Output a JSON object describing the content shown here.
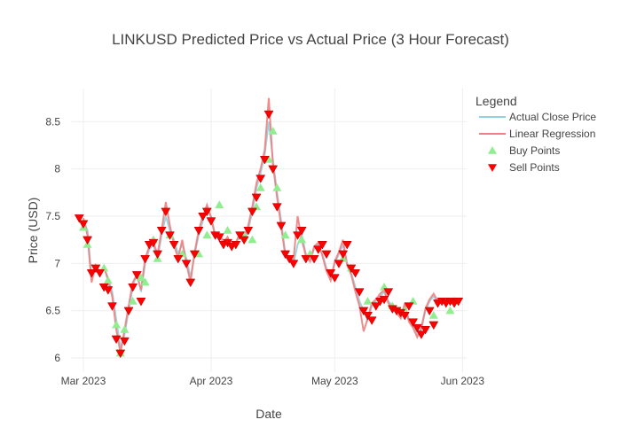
{
  "chart_data": {
    "type": "line",
    "title": "LINKUSD Predicted Price vs Actual Price (3 Hour Forecast)",
    "xlabel": "Date",
    "ylabel": "Price (USD)",
    "xlim": [
      "2023-02-26",
      "2023-06-02"
    ],
    "ylim": [
      5.85,
      8.85
    ],
    "y_ticks": [
      6,
      6.5,
      7,
      7.5,
      8,
      8.5
    ],
    "y_tick_labels": [
      "6",
      "6.5",
      "7",
      "7.5",
      "8",
      "8.5"
    ],
    "x_ticks": [
      "2023-03-01",
      "2023-04-01",
      "2023-05-01",
      "2023-06-01"
    ],
    "x_tick_labels": [
      "Mar 2023",
      "Apr 2023",
      "May 2023",
      "Jun 2023"
    ],
    "grid": true,
    "legend": {
      "title": "Legend",
      "placement": "right",
      "entries": [
        "Actual Close Price",
        "Linear Regression",
        "Buy Points",
        "Sell Points"
      ]
    },
    "colors": {
      "actual": "#8fd3e0",
      "regression": "#f08080",
      "buy": "#90ee90",
      "sell": "#ff0000"
    },
    "series": [
      {
        "name": "Actual Close Price",
        "type": "line",
        "x": [
          "2023-03-01",
          "2023-03-02",
          "2023-03-03",
          "2023-03-04",
          "2023-03-05",
          "2023-03-06",
          "2023-03-07",
          "2023-03-08",
          "2023-03-09",
          "2023-03-10",
          "2023-03-11",
          "2023-03-12",
          "2023-03-13",
          "2023-03-14",
          "2023-03-15",
          "2023-03-16",
          "2023-03-17",
          "2023-03-18",
          "2023-03-19",
          "2023-03-20",
          "2023-03-21",
          "2023-03-22",
          "2023-03-23",
          "2023-03-24",
          "2023-03-25",
          "2023-03-26",
          "2023-03-27",
          "2023-03-28",
          "2023-03-29",
          "2023-03-30",
          "2023-03-31",
          "2023-04-01",
          "2023-04-02",
          "2023-04-03",
          "2023-04-04",
          "2023-04-05",
          "2023-04-06",
          "2023-04-07",
          "2023-04-08",
          "2023-04-09",
          "2023-04-10",
          "2023-04-11",
          "2023-04-12",
          "2023-04-13",
          "2023-04-14",
          "2023-04-15",
          "2023-04-16",
          "2023-04-17",
          "2023-04-18",
          "2023-04-19",
          "2023-04-20",
          "2023-04-21",
          "2023-04-22",
          "2023-04-23",
          "2023-04-24",
          "2023-04-25",
          "2023-04-26",
          "2023-04-27",
          "2023-04-28",
          "2023-04-29",
          "2023-04-30",
          "2023-05-01",
          "2023-05-02",
          "2023-05-03",
          "2023-05-04",
          "2023-05-05",
          "2023-05-06",
          "2023-05-07",
          "2023-05-08",
          "2023-05-09",
          "2023-05-10",
          "2023-05-11",
          "2023-05-12",
          "2023-05-13",
          "2023-05-14",
          "2023-05-15",
          "2023-05-16",
          "2023-05-17",
          "2023-05-18",
          "2023-05-19",
          "2023-05-20",
          "2023-05-21",
          "2023-05-22",
          "2023-05-23",
          "2023-05-24",
          "2023-05-25",
          "2023-05-26",
          "2023-05-27",
          "2023-05-28",
          "2023-05-29",
          "2023-05-30",
          "2023-05-31"
        ],
        "y": [
          7.45,
          7.35,
          6.85,
          6.95,
          6.92,
          6.95,
          6.85,
          6.7,
          6.4,
          6.1,
          6.25,
          6.5,
          6.75,
          6.9,
          6.7,
          7.0,
          7.15,
          7.2,
          7.05,
          7.3,
          7.5,
          7.35,
          7.25,
          7.1,
          7.2,
          7.05,
          6.85,
          7.1,
          7.3,
          7.45,
          7.6,
          7.5,
          7.3,
          7.3,
          7.2,
          7.25,
          7.2,
          7.2,
          7.3,
          7.25,
          7.35,
          7.55,
          7.8,
          7.95,
          8.15,
          8.5,
          8.1,
          7.75,
          7.45,
          7.1,
          7.05,
          7.0,
          7.2,
          7.3,
          7.1,
          7.05,
          7.15,
          7.2,
          7.1,
          6.95,
          6.85,
          7.0,
          7.1,
          7.2,
          7.0,
          6.9,
          6.75,
          6.6,
          6.5,
          6.4,
          6.55,
          6.6,
          6.65,
          6.7,
          6.6,
          6.55,
          6.5,
          6.45,
          6.55,
          6.4,
          6.35,
          6.25,
          6.3,
          6.5,
          6.6,
          6.65,
          6.6,
          6.6,
          6.6,
          6.6,
          6.6,
          6.6
        ]
      },
      {
        "name": "Linear Regression",
        "type": "line",
        "x": [
          "2023-03-01",
          "2023-03-02",
          "2023-03-03",
          "2023-03-04",
          "2023-03-05",
          "2023-03-06",
          "2023-03-07",
          "2023-03-08",
          "2023-03-09",
          "2023-03-10",
          "2023-03-11",
          "2023-03-12",
          "2023-03-13",
          "2023-03-14",
          "2023-03-15",
          "2023-03-16",
          "2023-03-17",
          "2023-03-18",
          "2023-03-19",
          "2023-03-20",
          "2023-03-21",
          "2023-03-22",
          "2023-03-23",
          "2023-03-24",
          "2023-03-25",
          "2023-03-26",
          "2023-03-27",
          "2023-03-28",
          "2023-03-29",
          "2023-03-30",
          "2023-03-31",
          "2023-04-01",
          "2023-04-02",
          "2023-04-03",
          "2023-04-04",
          "2023-04-05",
          "2023-04-06",
          "2023-04-07",
          "2023-04-08",
          "2023-04-09",
          "2023-04-10",
          "2023-04-11",
          "2023-04-12",
          "2023-04-13",
          "2023-04-14",
          "2023-04-15",
          "2023-04-16",
          "2023-04-17",
          "2023-04-18",
          "2023-04-19",
          "2023-04-20",
          "2023-04-21",
          "2023-04-22",
          "2023-04-23",
          "2023-04-24",
          "2023-04-25",
          "2023-04-26",
          "2023-04-27",
          "2023-04-28",
          "2023-04-29",
          "2023-04-30",
          "2023-05-01",
          "2023-05-02",
          "2023-05-03",
          "2023-05-04",
          "2023-05-05",
          "2023-05-06",
          "2023-05-07",
          "2023-05-08",
          "2023-05-09",
          "2023-05-10",
          "2023-05-11",
          "2023-05-12",
          "2023-05-13",
          "2023-05-14",
          "2023-05-15",
          "2023-05-16",
          "2023-05-17",
          "2023-05-18",
          "2023-05-19",
          "2023-05-20",
          "2023-05-21",
          "2023-05-22",
          "2023-05-23",
          "2023-05-24",
          "2023-05-25",
          "2023-05-26",
          "2023-05-27",
          "2023-05-28",
          "2023-05-29",
          "2023-05-30",
          "2023-05-31"
        ],
        "y": [
          7.48,
          7.3,
          6.8,
          6.98,
          6.9,
          6.97,
          6.82,
          6.65,
          6.3,
          6.05,
          6.3,
          6.55,
          6.8,
          6.88,
          6.72,
          7.05,
          7.18,
          7.22,
          7.1,
          7.35,
          7.65,
          7.4,
          7.2,
          7.05,
          7.25,
          7.0,
          6.8,
          7.12,
          7.35,
          7.5,
          7.62,
          7.48,
          7.28,
          7.32,
          7.22,
          7.28,
          7.18,
          7.22,
          7.32,
          7.28,
          7.4,
          7.6,
          7.85,
          8.0,
          8.2,
          8.75,
          8.05,
          7.7,
          7.4,
          7.08,
          7.02,
          7.05,
          7.5,
          7.25,
          7.08,
          7.02,
          7.18,
          7.22,
          7.08,
          6.92,
          6.82,
          7.02,
          7.12,
          7.25,
          6.98,
          6.88,
          6.7,
          6.55,
          6.28,
          6.42,
          6.58,
          6.62,
          6.68,
          6.72,
          6.58,
          6.52,
          6.48,
          6.42,
          6.58,
          6.38,
          6.32,
          6.22,
          6.32,
          6.52,
          6.62,
          6.68,
          6.6,
          6.6,
          6.6,
          6.6,
          6.6,
          6.6
        ]
      },
      {
        "name": "Buy Points",
        "type": "scatter",
        "marker": "triangle-up",
        "x": [
          "2023-03-01",
          "2023-03-02",
          "2023-03-06",
          "2023-03-07",
          "2023-03-09",
          "2023-03-10",
          "2023-03-11",
          "2023-03-13",
          "2023-03-15",
          "2023-03-16",
          "2023-03-18",
          "2023-03-19",
          "2023-03-22",
          "2023-03-25",
          "2023-03-29",
          "2023-03-31",
          "2023-04-03",
          "2023-04-05",
          "2023-04-09",
          "2023-04-11",
          "2023-04-12",
          "2023-04-13",
          "2023-04-15",
          "2023-04-16",
          "2023-04-17",
          "2023-04-19",
          "2023-04-23",
          "2023-04-25",
          "2023-05-03",
          "2023-05-05",
          "2023-05-09",
          "2023-05-13",
          "2023-05-15",
          "2023-05-18",
          "2023-05-20",
          "2023-05-25",
          "2023-05-29",
          "2023-05-30"
        ],
        "y": [
          7.38,
          7.2,
          6.95,
          6.82,
          6.35,
          6.05,
          6.3,
          6.6,
          6.85,
          6.8,
          7.25,
          7.05,
          7.3,
          7.1,
          7.1,
          7.3,
          7.62,
          7.35,
          7.3,
          7.25,
          7.6,
          7.8,
          8.1,
          8.4,
          7.8,
          7.3,
          7.25,
          7.1,
          7.05,
          6.95,
          6.6,
          6.75,
          6.55,
          6.5,
          6.6,
          6.45,
          6.5,
          6.6
        ]
      },
      {
        "name": "Sell Points",
        "type": "scatter",
        "marker": "triangle-down",
        "x": [
          "2023-02-28",
          "2023-03-01",
          "2023-03-02",
          "2023-03-03",
          "2023-03-04",
          "2023-03-05",
          "2023-03-06",
          "2023-03-07",
          "2023-03-08",
          "2023-03-09",
          "2023-03-10",
          "2023-03-11",
          "2023-03-12",
          "2023-03-13",
          "2023-03-14",
          "2023-03-15",
          "2023-03-16",
          "2023-03-17",
          "2023-03-18",
          "2023-03-19",
          "2023-03-20",
          "2023-03-21",
          "2023-03-22",
          "2023-03-23",
          "2023-03-24",
          "2023-03-26",
          "2023-03-27",
          "2023-03-28",
          "2023-03-29",
          "2023-03-30",
          "2023-03-31",
          "2023-04-01",
          "2023-04-02",
          "2023-04-03",
          "2023-04-04",
          "2023-04-05",
          "2023-04-06",
          "2023-04-07",
          "2023-04-08",
          "2023-04-09",
          "2023-04-10",
          "2023-04-11",
          "2023-04-12",
          "2023-04-13",
          "2023-04-14",
          "2023-04-15",
          "2023-04-16",
          "2023-04-17",
          "2023-04-18",
          "2023-04-19",
          "2023-04-20",
          "2023-04-21",
          "2023-04-22",
          "2023-04-23",
          "2023-04-24",
          "2023-04-26",
          "2023-04-27",
          "2023-04-28",
          "2023-04-29",
          "2023-04-30",
          "2023-05-01",
          "2023-05-02",
          "2023-05-03",
          "2023-05-04",
          "2023-05-05",
          "2023-05-06",
          "2023-05-07",
          "2023-05-08",
          "2023-05-09",
          "2023-05-10",
          "2023-05-11",
          "2023-05-12",
          "2023-05-13",
          "2023-05-14",
          "2023-05-15",
          "2023-05-16",
          "2023-05-17",
          "2023-05-18",
          "2023-05-19",
          "2023-05-20",
          "2023-05-21",
          "2023-05-22",
          "2023-05-23",
          "2023-05-24",
          "2023-05-25",
          "2023-05-26",
          "2023-05-27",
          "2023-05-28",
          "2023-05-29",
          "2023-05-30",
          "2023-05-31"
        ],
        "y": [
          7.48,
          7.42,
          7.25,
          6.9,
          6.95,
          6.9,
          6.75,
          6.72,
          6.55,
          6.2,
          6.05,
          6.18,
          6.5,
          6.75,
          6.88,
          6.6,
          7.05,
          7.2,
          7.22,
          7.1,
          7.35,
          7.55,
          7.3,
          7.2,
          7.05,
          7.0,
          6.8,
          7.1,
          7.35,
          7.5,
          7.55,
          7.45,
          7.3,
          7.28,
          7.2,
          7.22,
          7.18,
          7.2,
          7.3,
          7.25,
          7.35,
          7.55,
          7.7,
          7.9,
          8.1,
          8.58,
          8.0,
          7.6,
          7.4,
          7.1,
          7.05,
          7.0,
          7.3,
          7.35,
          7.05,
          7.05,
          7.15,
          7.2,
          7.1,
          6.9,
          6.85,
          7.0,
          7.1,
          7.2,
          6.95,
          6.9,
          6.7,
          6.5,
          6.45,
          6.4,
          6.55,
          6.6,
          6.62,
          6.7,
          6.52,
          6.5,
          6.48,
          6.45,
          6.55,
          6.38,
          6.32,
          6.25,
          6.3,
          6.5,
          6.35,
          6.58,
          6.6,
          6.58,
          6.6,
          6.58,
          6.6
        ]
      }
    ]
  }
}
